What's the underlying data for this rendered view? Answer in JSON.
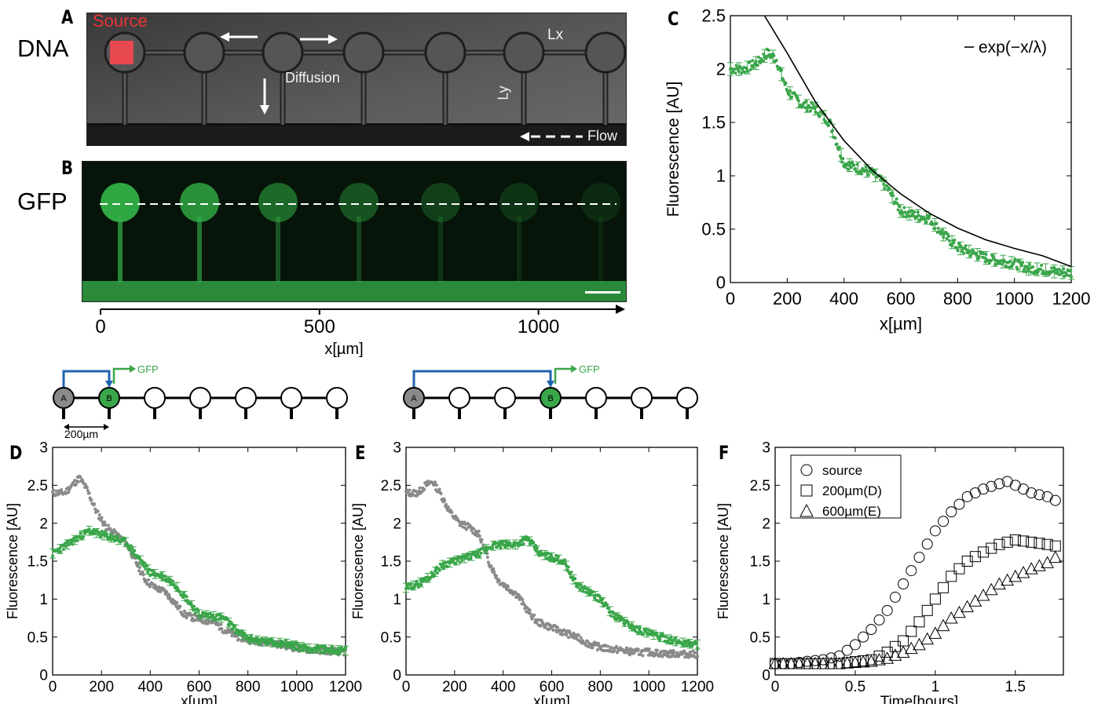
{
  "panels": {
    "A": {
      "letter": "A",
      "row_label": "DNA",
      "labels": {
        "source": "Source",
        "diffusion": "Diffusion",
        "lx": "Lx",
        "ly": "Ly",
        "flow": "Flow"
      }
    },
    "B": {
      "letter": "B",
      "row_label": "GFP",
      "axis": {
        "ticks": [
          "0",
          "500",
          "1000"
        ],
        "tick_values": [
          0,
          500,
          1000
        ],
        "xlim": [
          0,
          1180
        ],
        "xlabel": "x[µm]"
      }
    },
    "C": {
      "letter": "C"
    },
    "D": {
      "letter": "D",
      "schematic": {
        "node_a": "A",
        "node_b": "B",
        "gfp_label": "GFP",
        "spacing_label": "200µm",
        "node_count": 7,
        "b_index": 1
      }
    },
    "E": {
      "letter": "E",
      "schematic": {
        "node_a": "A",
        "node_b": "B",
        "gfp_label": "GFP",
        "node_count": 7,
        "b_index": 3
      }
    },
    "F": {
      "letter": "F"
    }
  },
  "chart_data": [
    {
      "id": "C",
      "type": "scatter",
      "xlabel": "x[µm]",
      "ylabel": "Fluorescence [AU]",
      "xlim": [
        0,
        1200
      ],
      "ylim": [
        0,
        2.5
      ],
      "xticks": [
        0,
        200,
        400,
        600,
        800,
        1000,
        1200
      ],
      "yticks": [
        0,
        0.5,
        1,
        1.5,
        2,
        2.5
      ],
      "ytick_labels": [
        "0",
        "0.5",
        "1",
        "1.5",
        "2",
        "2.5"
      ],
      "legend": {
        "position": "top-right",
        "entries": [
          "exp(−x/λ)"
        ]
      },
      "fit": {
        "label": "exp(−x/λ)",
        "x": [
          120,
          200,
          300,
          400,
          500,
          600,
          700,
          800,
          900,
          1000,
          1100,
          1200
        ],
        "y": [
          2.5,
          2.15,
          1.69,
          1.33,
          1.05,
          0.83,
          0.65,
          0.51,
          0.4,
          0.32,
          0.25,
          0.15
        ]
      },
      "series": [
        {
          "color": "#3aa64a",
          "x": [
            0,
            50,
            100,
            130,
            160,
            200,
            250,
            300,
            350,
            400,
            450,
            500,
            550,
            600,
            650,
            700,
            750,
            800,
            850,
            900,
            950,
            1000,
            1050,
            1100,
            1150,
            1200
          ],
          "y": [
            2.0,
            2.0,
            2.07,
            2.15,
            2.1,
            1.8,
            1.67,
            1.63,
            1.5,
            1.12,
            1.07,
            1.03,
            0.9,
            0.67,
            0.63,
            0.6,
            0.45,
            0.33,
            0.28,
            0.23,
            0.2,
            0.18,
            0.13,
            0.12,
            0.1,
            0.09
          ]
        }
      ]
    },
    {
      "id": "D",
      "type": "scatter",
      "xlabel": "x[µm]",
      "ylabel": "Fluorescence [AU]",
      "xlim": [
        0,
        1200
      ],
      "ylim": [
        0,
        3
      ],
      "xticks": [
        0,
        200,
        400,
        600,
        800,
        1000,
        1200
      ],
      "yticks": [
        0,
        0.5,
        1,
        1.5,
        2,
        2.5,
        3
      ],
      "ytick_labels": [
        "0",
        "0.5",
        "1",
        "1.5",
        "2",
        "2.5",
        "3"
      ],
      "series": [
        {
          "color": "#8a8a8a",
          "x": [
            0,
            50,
            80,
            110,
            140,
            180,
            220,
            260,
            300,
            340,
            380,
            420,
            460,
            500,
            540,
            580,
            620,
            660,
            700,
            760,
            820,
            880,
            940,
            1000,
            1060,
            1120,
            1200
          ],
          "y": [
            2.4,
            2.4,
            2.5,
            2.6,
            2.45,
            2.15,
            1.95,
            1.85,
            1.75,
            1.5,
            1.25,
            1.15,
            1.1,
            0.95,
            0.8,
            0.75,
            0.72,
            0.7,
            0.6,
            0.5,
            0.45,
            0.43,
            0.4,
            0.35,
            0.33,
            0.32,
            0.3
          ]
        },
        {
          "color": "#3aa64a",
          "x": [
            0,
            50,
            100,
            150,
            200,
            250,
            300,
            350,
            400,
            450,
            500,
            550,
            600,
            650,
            700,
            750,
            800,
            850,
            900,
            950,
            1000,
            1050,
            1100,
            1150,
            1200
          ],
          "y": [
            1.6,
            1.7,
            1.8,
            1.9,
            1.85,
            1.8,
            1.75,
            1.55,
            1.35,
            1.3,
            1.2,
            1.0,
            0.8,
            0.78,
            0.75,
            0.6,
            0.48,
            0.45,
            0.43,
            0.42,
            0.38,
            0.35,
            0.34,
            0.33,
            0.32
          ]
        }
      ]
    },
    {
      "id": "E",
      "type": "scatter",
      "xlabel": "x[µm]",
      "ylabel": "Fluorescence [AU]",
      "xlim": [
        0,
        1200
      ],
      "ylim": [
        0,
        3
      ],
      "xticks": [
        0,
        200,
        400,
        600,
        800,
        1000,
        1200
      ],
      "yticks": [
        0,
        0.5,
        1,
        1.5,
        2,
        2.5,
        3
      ],
      "ytick_labels": [
        "0",
        "0.5",
        "1",
        "1.5",
        "2",
        "2.5",
        "3"
      ],
      "series": [
        {
          "color": "#8a8a8a",
          "x": [
            0,
            50,
            80,
            110,
            140,
            180,
            220,
            260,
            300,
            340,
            380,
            420,
            460,
            500,
            540,
            580,
            620,
            660,
            700,
            760,
            820,
            880,
            940,
            1000,
            1060,
            1120,
            1200
          ],
          "y": [
            2.4,
            2.4,
            2.5,
            2.55,
            2.4,
            2.15,
            2.0,
            1.95,
            1.85,
            1.5,
            1.25,
            1.15,
            1.05,
            0.85,
            0.7,
            0.65,
            0.6,
            0.55,
            0.5,
            0.4,
            0.35,
            0.33,
            0.3,
            0.3,
            0.28,
            0.28,
            0.27
          ]
        },
        {
          "color": "#3aa64a",
          "x": [
            0,
            50,
            100,
            150,
            200,
            250,
            300,
            350,
            400,
            450,
            500,
            550,
            600,
            650,
            700,
            750,
            800,
            850,
            900,
            950,
            1000,
            1050,
            1100,
            1150,
            1200
          ],
          "y": [
            1.15,
            1.2,
            1.3,
            1.45,
            1.5,
            1.55,
            1.6,
            1.7,
            1.72,
            1.72,
            1.8,
            1.6,
            1.55,
            1.5,
            1.2,
            1.1,
            1.0,
            0.8,
            0.7,
            0.6,
            0.55,
            0.5,
            0.45,
            0.42,
            0.4
          ]
        }
      ]
    },
    {
      "id": "F",
      "type": "scatter",
      "xlabel": "Time[hours]",
      "ylabel": "Fluorescence [AU]",
      "xlim": [
        0,
        1.8
      ],
      "ylim": [
        0,
        3
      ],
      "xticks": [
        0,
        0.5,
        1,
        1.5
      ],
      "xtick_labels": [
        "0",
        "0.5",
        "1",
        "1.5"
      ],
      "yticks": [
        0,
        0.5,
        1,
        1.5,
        2,
        2.5,
        3
      ],
      "ytick_labels": [
        "0",
        "0.5",
        "1",
        "1.5",
        "2",
        "2.5",
        "3"
      ],
      "legend": {
        "position": "top-left",
        "entries": [
          "source",
          "200µm(D)",
          "600µm(E)"
        ]
      },
      "series": [
        {
          "name": "source",
          "marker": "circle",
          "x": [
            0,
            0.1,
            0.2,
            0.3,
            0.4,
            0.5,
            0.6,
            0.7,
            0.8,
            0.9,
            1.0,
            1.1,
            1.2,
            1.3,
            1.4,
            1.45,
            1.5,
            1.6,
            1.7,
            1.75
          ],
          "y": [
            0.15,
            0.15,
            0.18,
            0.2,
            0.25,
            0.4,
            0.6,
            0.85,
            1.2,
            1.55,
            1.9,
            2.15,
            2.35,
            2.45,
            2.52,
            2.55,
            2.5,
            2.4,
            2.35,
            2.3
          ]
        },
        {
          "name": "200µm(D)",
          "marker": "square",
          "x": [
            0,
            0.2,
            0.4,
            0.6,
            0.7,
            0.8,
            0.9,
            1.0,
            1.1,
            1.2,
            1.3,
            1.4,
            1.5,
            1.6,
            1.7,
            1.75
          ],
          "y": [
            0.15,
            0.15,
            0.15,
            0.2,
            0.3,
            0.45,
            0.7,
            1.0,
            1.3,
            1.5,
            1.62,
            1.72,
            1.78,
            1.75,
            1.72,
            1.7
          ]
        },
        {
          "name": "600µm(E)",
          "marker": "triangle",
          "x": [
            0,
            0.2,
            0.4,
            0.6,
            0.7,
            0.8,
            0.9,
            1.0,
            1.1,
            1.2,
            1.3,
            1.4,
            1.5,
            1.6,
            1.7,
            1.75
          ],
          "y": [
            0.15,
            0.15,
            0.15,
            0.18,
            0.22,
            0.3,
            0.4,
            0.55,
            0.75,
            0.9,
            1.05,
            1.2,
            1.3,
            1.4,
            1.48,
            1.55
          ]
        }
      ]
    }
  ]
}
